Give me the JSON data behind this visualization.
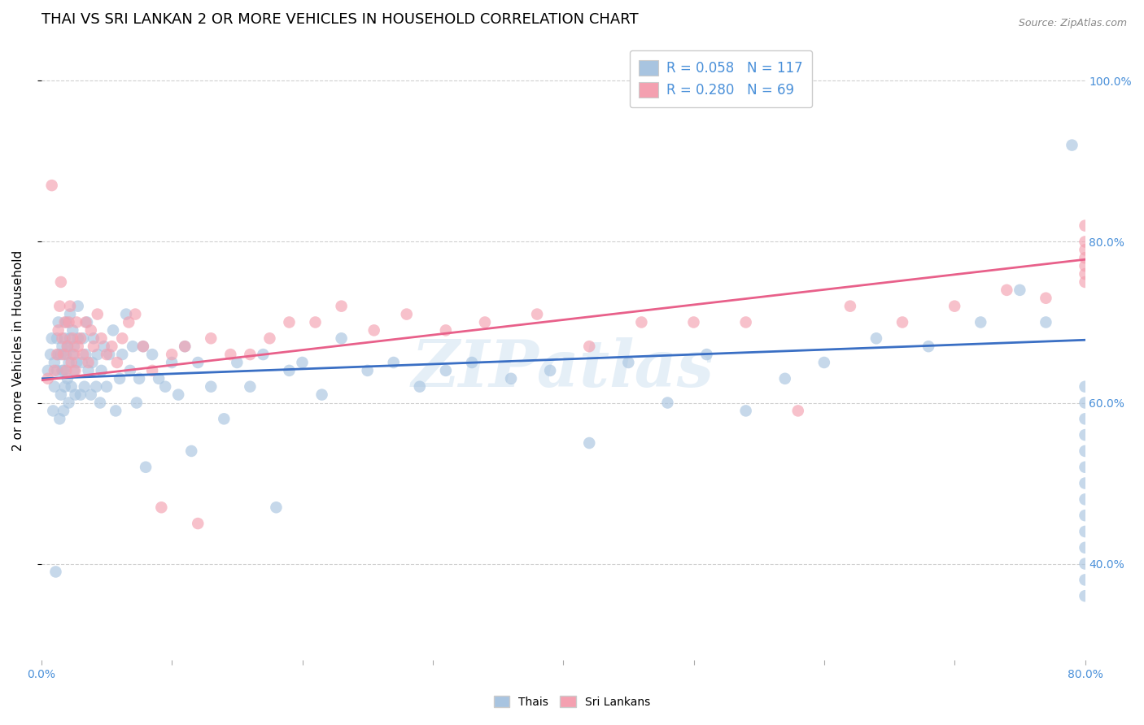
{
  "title": "THAI VS SRI LANKAN 2 OR MORE VEHICLES IN HOUSEHOLD CORRELATION CHART",
  "source": "Source: ZipAtlas.com",
  "ylabel": "2 or more Vehicles in Household",
  "watermark": "ZIPatlas",
  "xlim": [
    0.0,
    0.8
  ],
  "ylim": [
    0.28,
    1.05
  ],
  "ytick_positions": [
    0.4,
    0.6,
    0.8,
    1.0
  ],
  "yticklabels": [
    "40.0%",
    "60.0%",
    "80.0%",
    "100.0%"
  ],
  "thai_color": "#a8c4e0",
  "sri_lankan_color": "#f4a0b0",
  "thai_line_color": "#3a6fc4",
  "sri_lankan_line_color": "#e8608a",
  "grid_color": "#d0d0d0",
  "background_color": "#ffffff",
  "title_fontsize": 13,
  "axis_label_fontsize": 11,
  "tick_fontsize": 10,
  "legend_fontsize": 12,
  "marker_size": 110,
  "marker_alpha": 0.65,
  "right_tick_color": "#4a90d9",
  "thai_line_x": [
    0.0,
    0.8
  ],
  "thai_line_y": [
    0.63,
    0.678
  ],
  "sri_line_x": [
    0.0,
    0.8
  ],
  "sri_line_y": [
    0.628,
    0.778
  ],
  "thai_x": [
    0.005,
    0.007,
    0.008,
    0.009,
    0.01,
    0.01,
    0.011,
    0.012,
    0.012,
    0.013,
    0.013,
    0.014,
    0.015,
    0.015,
    0.016,
    0.016,
    0.017,
    0.017,
    0.018,
    0.018,
    0.019,
    0.019,
    0.02,
    0.02,
    0.021,
    0.021,
    0.022,
    0.022,
    0.023,
    0.024,
    0.024,
    0.025,
    0.025,
    0.026,
    0.027,
    0.028,
    0.028,
    0.03,
    0.031,
    0.032,
    0.033,
    0.034,
    0.035,
    0.036,
    0.038,
    0.039,
    0.04,
    0.042,
    0.043,
    0.045,
    0.046,
    0.048,
    0.05,
    0.052,
    0.055,
    0.057,
    0.06,
    0.062,
    0.065,
    0.068,
    0.07,
    0.073,
    0.075,
    0.078,
    0.08,
    0.085,
    0.09,
    0.095,
    0.1,
    0.105,
    0.11,
    0.115,
    0.12,
    0.13,
    0.14,
    0.15,
    0.16,
    0.17,
    0.18,
    0.19,
    0.2,
    0.215,
    0.23,
    0.25,
    0.27,
    0.29,
    0.31,
    0.33,
    0.36,
    0.39,
    0.42,
    0.45,
    0.48,
    0.51,
    0.54,
    0.57,
    0.6,
    0.64,
    0.68,
    0.72,
    0.75,
    0.77,
    0.79,
    0.8,
    0.8,
    0.8,
    0.8,
    0.8,
    0.8,
    0.8,
    0.8,
    0.8,
    0.8,
    0.8,
    0.8,
    0.8,
    0.8
  ],
  "thai_y": [
    0.64,
    0.66,
    0.68,
    0.59,
    0.62,
    0.65,
    0.39,
    0.64,
    0.68,
    0.66,
    0.7,
    0.58,
    0.61,
    0.66,
    0.64,
    0.67,
    0.59,
    0.64,
    0.68,
    0.62,
    0.66,
    0.7,
    0.63,
    0.67,
    0.6,
    0.65,
    0.68,
    0.71,
    0.62,
    0.66,
    0.69,
    0.64,
    0.67,
    0.61,
    0.65,
    0.68,
    0.72,
    0.61,
    0.65,
    0.68,
    0.62,
    0.66,
    0.7,
    0.64,
    0.61,
    0.65,
    0.68,
    0.62,
    0.66,
    0.6,
    0.64,
    0.67,
    0.62,
    0.66,
    0.69,
    0.59,
    0.63,
    0.66,
    0.71,
    0.64,
    0.67,
    0.6,
    0.63,
    0.67,
    0.52,
    0.66,
    0.63,
    0.62,
    0.65,
    0.61,
    0.67,
    0.54,
    0.65,
    0.62,
    0.58,
    0.65,
    0.62,
    0.66,
    0.47,
    0.64,
    0.65,
    0.61,
    0.68,
    0.64,
    0.65,
    0.62,
    0.64,
    0.65,
    0.63,
    0.64,
    0.55,
    0.65,
    0.6,
    0.66,
    0.59,
    0.63,
    0.65,
    0.68,
    0.67,
    0.7,
    0.74,
    0.7,
    0.92,
    0.36,
    0.38,
    0.4,
    0.42,
    0.44,
    0.46,
    0.48,
    0.5,
    0.52,
    0.54,
    0.56,
    0.58,
    0.6,
    0.62
  ],
  "sri_x": [
    0.005,
    0.008,
    0.01,
    0.012,
    0.013,
    0.014,
    0.015,
    0.016,
    0.017,
    0.018,
    0.019,
    0.02,
    0.021,
    0.022,
    0.023,
    0.024,
    0.025,
    0.026,
    0.027,
    0.028,
    0.03,
    0.032,
    0.034,
    0.036,
    0.038,
    0.04,
    0.043,
    0.046,
    0.05,
    0.054,
    0.058,
    0.062,
    0.067,
    0.072,
    0.078,
    0.085,
    0.092,
    0.1,
    0.11,
    0.12,
    0.13,
    0.145,
    0.16,
    0.175,
    0.19,
    0.21,
    0.23,
    0.255,
    0.28,
    0.31,
    0.34,
    0.38,
    0.42,
    0.46,
    0.5,
    0.54,
    0.58,
    0.62,
    0.66,
    0.7,
    0.74,
    0.77,
    0.8,
    0.8,
    0.8,
    0.8,
    0.8,
    0.8,
    0.8
  ],
  "sri_y": [
    0.63,
    0.87,
    0.64,
    0.66,
    0.69,
    0.72,
    0.75,
    0.68,
    0.66,
    0.7,
    0.64,
    0.67,
    0.7,
    0.72,
    0.65,
    0.68,
    0.66,
    0.64,
    0.7,
    0.67,
    0.68,
    0.66,
    0.7,
    0.65,
    0.69,
    0.67,
    0.71,
    0.68,
    0.66,
    0.67,
    0.65,
    0.68,
    0.7,
    0.71,
    0.67,
    0.64,
    0.47,
    0.66,
    0.67,
    0.45,
    0.68,
    0.66,
    0.66,
    0.68,
    0.7,
    0.7,
    0.72,
    0.69,
    0.71,
    0.69,
    0.7,
    0.71,
    0.67,
    0.7,
    0.7,
    0.7,
    0.59,
    0.72,
    0.7,
    0.72,
    0.74,
    0.73,
    0.75,
    0.77,
    0.79,
    0.76,
    0.78,
    0.8,
    0.82
  ]
}
